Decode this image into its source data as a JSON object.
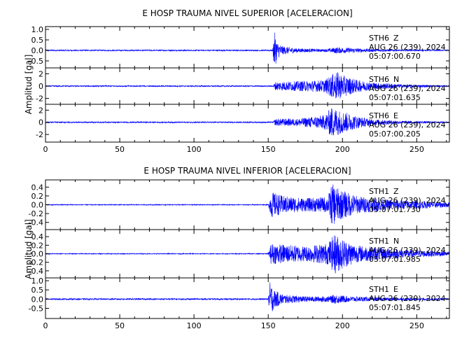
{
  "chart_data": [
    {
      "type": "line",
      "title": "E HOSP TRAUMA NIVEL SUPERIOR [ACELERACION]",
      "ylabel": "Amplitud [gal]",
      "xlim": [
        0,
        272
      ],
      "x_ticks": [
        0,
        50,
        100,
        150,
        200,
        250
      ],
      "line_color": "#0000ff",
      "traces": [
        {
          "station": "STH6",
          "component": "Z",
          "date": "AUG 26 (239), 2024",
          "time": "05:07:00.670",
          "ylim": [
            -0.7,
            1.0
          ],
          "y_ticks": [
            1.0,
            0.5,
            0.0,
            -0.5
          ],
          "y_tick_labels": [
            "1.0",
            "0.5",
            "0.0",
            "-0.5"
          ],
          "envelope": [
            [
              0,
              0.03
            ],
            [
              153,
              0.03
            ],
            [
              154,
              0.95
            ],
            [
              156,
              0.4
            ],
            [
              160,
              0.2
            ],
            [
              170,
              0.1
            ],
            [
              188,
              0.06
            ],
            [
              196,
              0.15
            ],
            [
              205,
              0.12
            ],
            [
              215,
              0.08
            ],
            [
              235,
              0.04
            ],
            [
              272,
              0.02
            ]
          ]
        },
        {
          "station": "STH6",
          "component": "N",
          "date": "AUG 26 (239), 2024",
          "time": "05:07:01.635",
          "ylim": [
            -2.5,
            2.5
          ],
          "y_ticks": [
            2,
            0,
            -2
          ],
          "y_tick_labels": [
            "2",
            "0",
            "-2"
          ],
          "envelope": [
            [
              0,
              0.1
            ],
            [
              153,
              0.1
            ],
            [
              155,
              0.7
            ],
            [
              170,
              0.8
            ],
            [
              188,
              1.0
            ],
            [
              196,
              2.4
            ],
            [
              200,
              1.8
            ],
            [
              210,
              1.0
            ],
            [
              220,
              0.6
            ],
            [
              240,
              0.3
            ],
            [
              272,
              0.1
            ]
          ]
        },
        {
          "station": "STH6",
          "component": "E",
          "date": "AUG 26 (239), 2024",
          "time": "05:07:00.205",
          "ylim": [
            -2.8,
            2.5
          ],
          "y_ticks": [
            2,
            0,
            -2
          ],
          "y_tick_labels": [
            "2",
            "0",
            "-2"
          ],
          "envelope": [
            [
              0,
              0.1
            ],
            [
              153,
              0.1
            ],
            [
              155,
              0.6
            ],
            [
              170,
              0.6
            ],
            [
              188,
              1.2
            ],
            [
              193,
              2.6
            ],
            [
              198,
              2.0
            ],
            [
              210,
              1.0
            ],
            [
              220,
              0.5
            ],
            [
              240,
              0.25
            ],
            [
              272,
              0.1
            ]
          ]
        }
      ]
    },
    {
      "type": "line",
      "title": "E HOSP TRAUMA NIVEL INFERIOR [ACELERACION]",
      "ylabel": "Amplitud [gal]",
      "xlim": [
        0,
        272
      ],
      "x_ticks": [
        0,
        50,
        100,
        150,
        200,
        250
      ],
      "line_color": "#0000ff",
      "traces": [
        {
          "station": "STH1",
          "component": "Z",
          "date": "AUG 26 (239), 2024",
          "time": "05:07:01.730",
          "ylim": [
            -0.5,
            0.5
          ],
          "y_ticks": [
            0.4,
            0.2,
            0.0,
            -0.2,
            -0.4
          ],
          "y_tick_labels": [
            "0.4",
            "0.2",
            "0.0",
            "-0.2",
            "-0.4"
          ],
          "envelope": [
            [
              0,
              0.01
            ],
            [
              150,
              0.01
            ],
            [
              152,
              0.3
            ],
            [
              160,
              0.2
            ],
            [
              175,
              0.15
            ],
            [
              190,
              0.18
            ],
            [
              193,
              0.48
            ],
            [
              198,
              0.35
            ],
            [
              210,
              0.2
            ],
            [
              230,
              0.12
            ],
            [
              272,
              0.06
            ]
          ]
        },
        {
          "station": "STH1",
          "component": "N",
          "date": "AUG 26 (239), 2024",
          "time": "05:07:01.985",
          "ylim": [
            -0.5,
            0.5
          ],
          "y_ticks": [
            0.4,
            0.2,
            0.0,
            -0.2,
            -0.4
          ],
          "y_tick_labels": [
            "0.4",
            "0.2",
            "0.0",
            "-0.2",
            "-0.4"
          ],
          "envelope": [
            [
              0,
              0.01
            ],
            [
              150,
              0.01
            ],
            [
              152,
              0.25
            ],
            [
              160,
              0.22
            ],
            [
              175,
              0.18
            ],
            [
              190,
              0.25
            ],
            [
              195,
              0.48
            ],
            [
              200,
              0.35
            ],
            [
              210,
              0.2
            ],
            [
              240,
              0.1
            ],
            [
              272,
              0.05
            ]
          ]
        },
        {
          "station": "STH1",
          "component": "E",
          "date": "AUG 26 (239), 2024",
          "time": "05:07:01.845",
          "ylim": [
            -0.9,
            1.0
          ],
          "y_ticks": [
            1.0,
            0.5,
            0.0,
            -0.5
          ],
          "y_tick_labels": [
            "1.0",
            "0.5",
            "0.0",
            "-0.5"
          ],
          "envelope": [
            [
              0,
              0.04
            ],
            [
              150,
              0.04
            ],
            [
              151,
              0.95
            ],
            [
              154,
              0.5
            ],
            [
              160,
              0.25
            ],
            [
              175,
              0.15
            ],
            [
              190,
              0.15
            ],
            [
              195,
              0.25
            ],
            [
              205,
              0.15
            ],
            [
              230,
              0.08
            ],
            [
              272,
              0.05
            ]
          ]
        }
      ]
    }
  ]
}
